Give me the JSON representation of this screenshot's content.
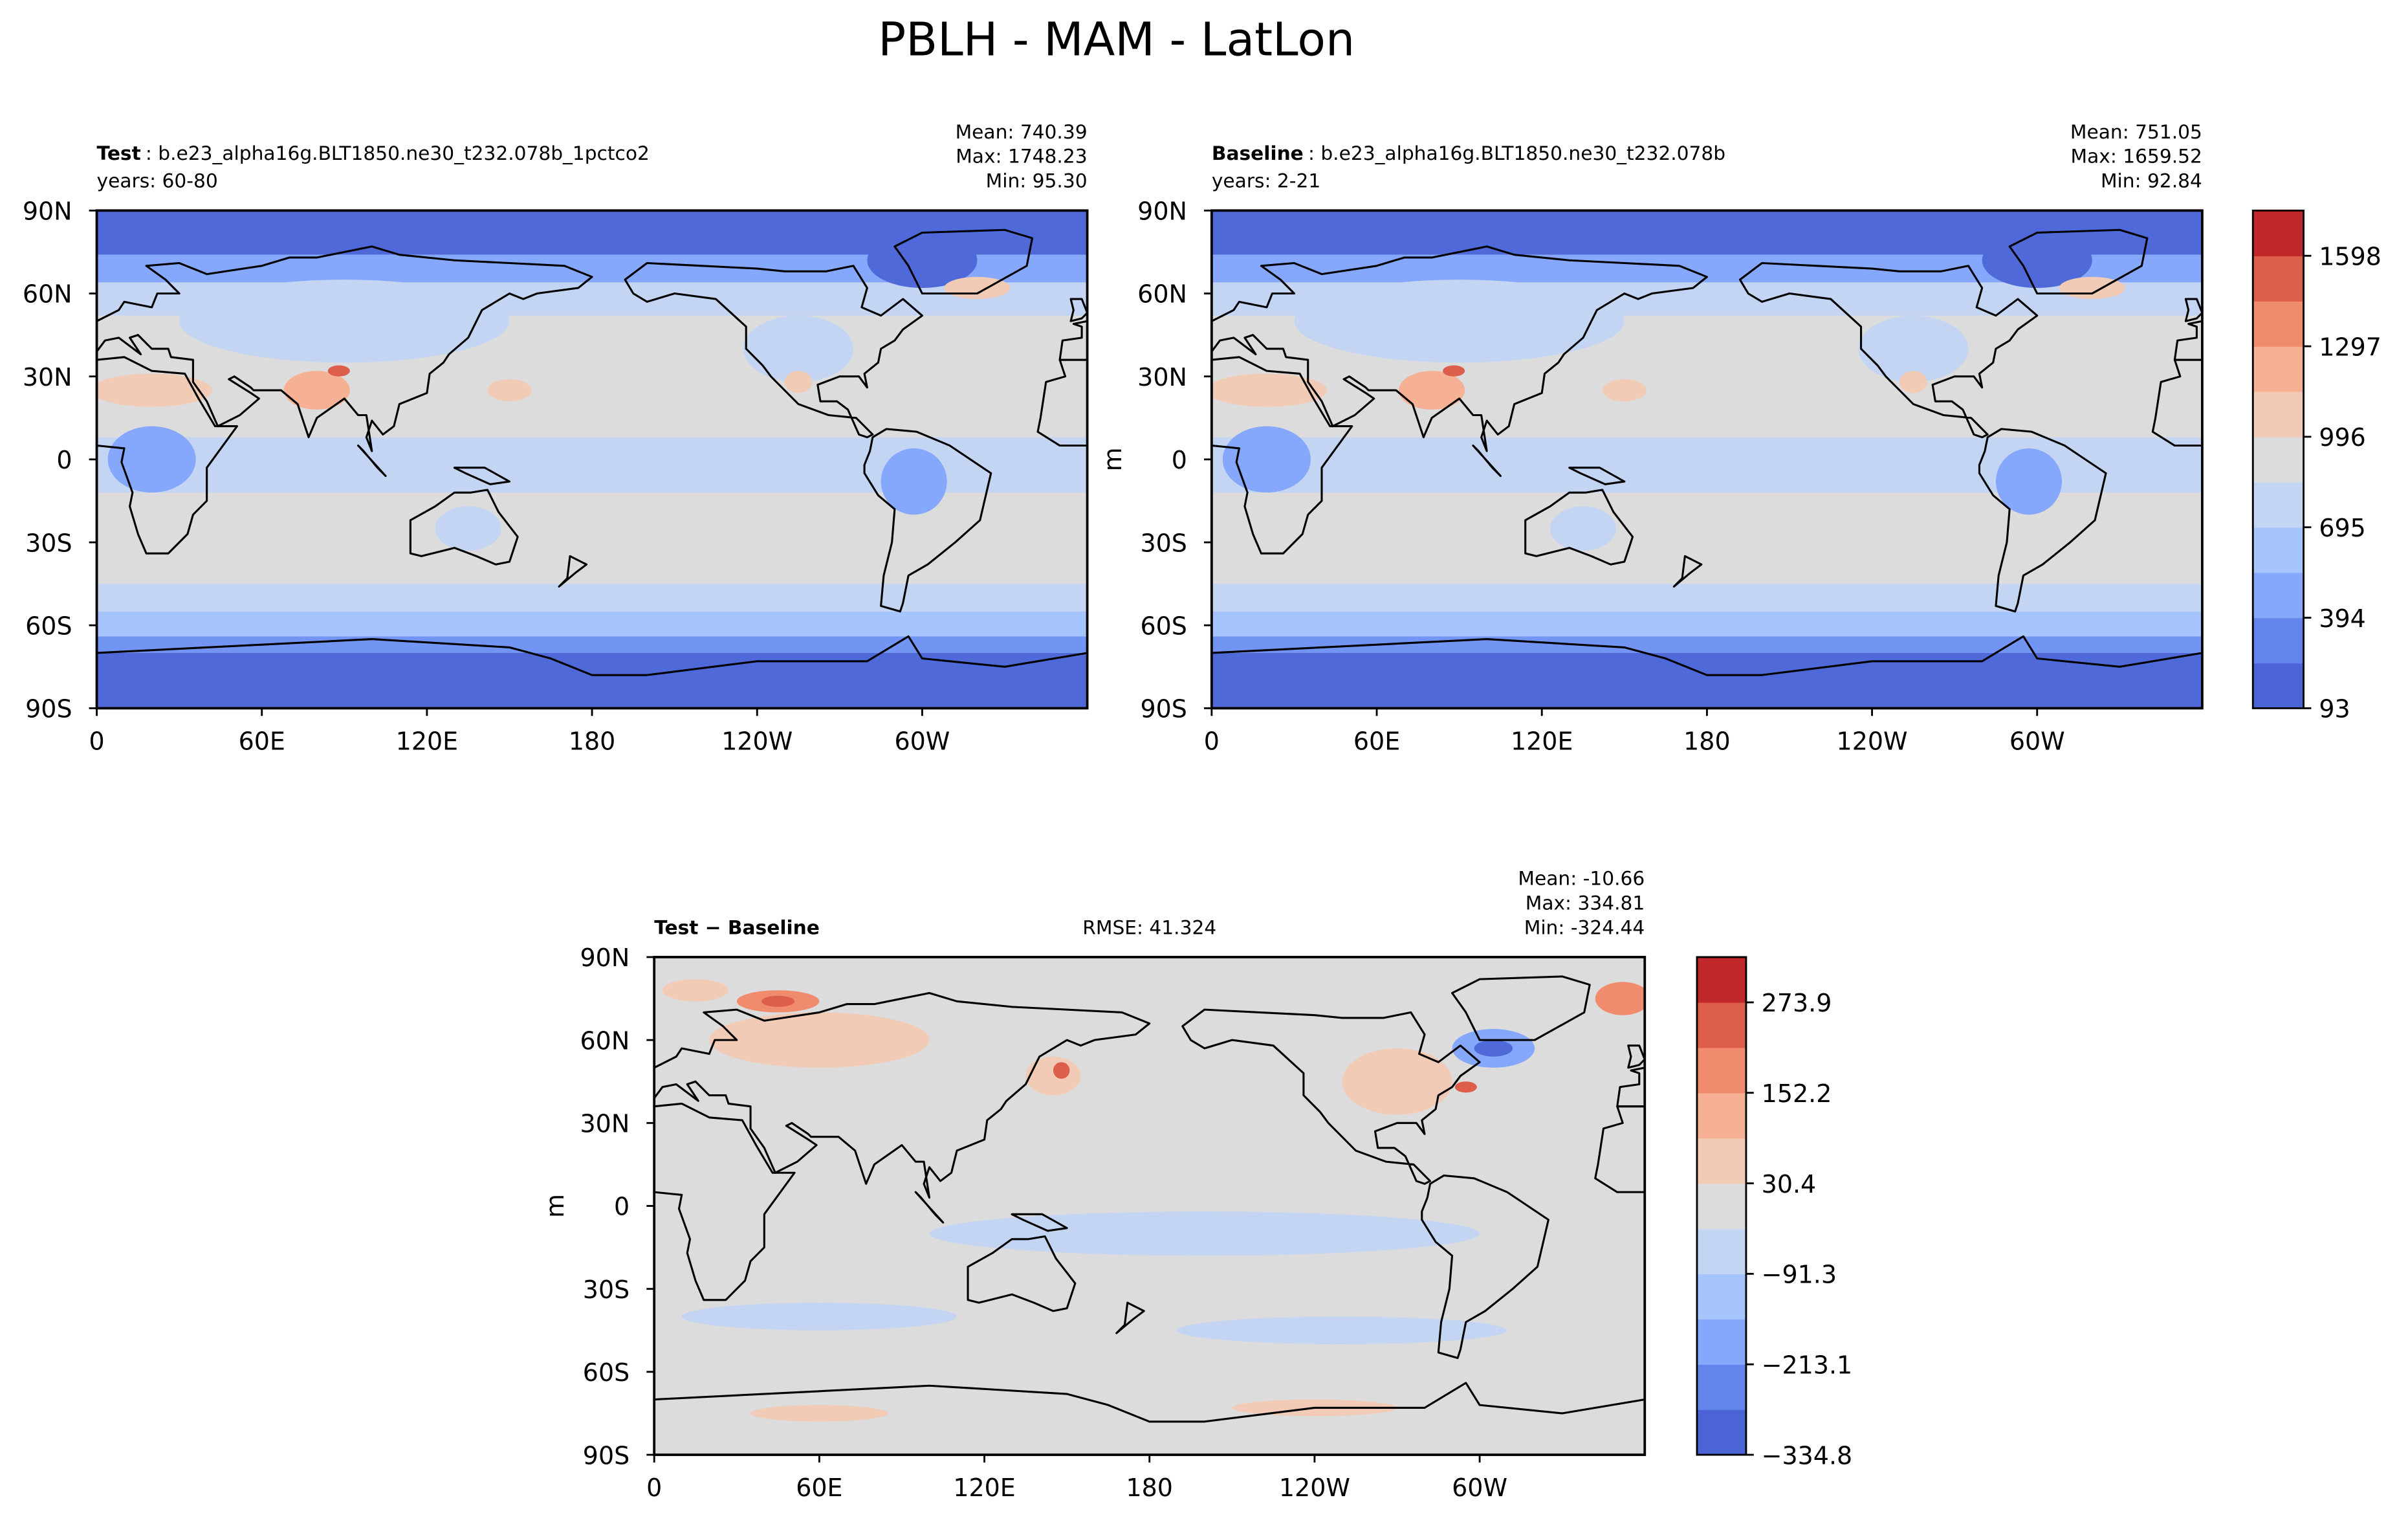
{
  "title": "PBLH - MAM - LatLon",
  "chart_data": [
    {
      "type": "map",
      "name": "Test",
      "case": ": b.e23_alpha16g.BLT1850.ne30_t232.078b_1pctco2",
      "years": "years: 60-80",
      "stats": [
        "Mean: 740.39",
        "Max: 1748.23",
        "Min: 95.30"
      ],
      "pattern": "abs",
      "xlim": [
        0,
        360
      ],
      "ylim": [
        -90,
        90
      ],
      "xticks": [
        0,
        {
          "value": 60,
          "label": "60E"
        },
        {
          "value": 120,
          "label": "120E"
        },
        180,
        {
          "value": 240,
          "label": "120W"
        },
        {
          "value": 300,
          "label": "60W"
        }
      ],
      "yticks": [
        {
          "value": 90,
          "label": "90N"
        },
        {
          "value": 60,
          "label": "60N"
        },
        {
          "value": 30,
          "label": "30N"
        },
        0,
        {
          "value": -30,
          "label": "30S"
        },
        {
          "value": -60,
          "label": "60S"
        },
        {
          "value": -90,
          "label": "90S"
        }
      ]
    },
    {
      "type": "map",
      "name": "Baseline",
      "case": ": b.e23_alpha16g.BLT1850.ne30_t232.078b",
      "years": "years: 2-21",
      "stats": [
        "Mean: 751.05",
        "Max: 1659.52",
        "Min: 92.84"
      ],
      "pattern": "abs",
      "ylabel": "m",
      "xlim": [
        0,
        360
      ],
      "ylim": [
        -90,
        90
      ],
      "xticks": [
        0,
        {
          "value": 60,
          "label": "60E"
        },
        {
          "value": 120,
          "label": "120E"
        },
        180,
        {
          "value": 240,
          "label": "120W"
        },
        {
          "value": 300,
          "label": "60W"
        }
      ],
      "yticks": [
        {
          "value": 90,
          "label": "90N"
        },
        {
          "value": 60,
          "label": "60N"
        },
        {
          "value": 30,
          "label": "30N"
        },
        0,
        {
          "value": -30,
          "label": "30S"
        },
        {
          "value": -60,
          "label": "60S"
        },
        {
          "value": -90,
          "label": "90S"
        }
      ],
      "colorbar": {
        "lim": [
          93,
          1748.5
        ],
        "ticks": [
          93,
          394,
          695,
          996,
          1297,
          1598
        ],
        "colors": [
          "#4b64d5",
          "#6384eb",
          "#85a8fc",
          "#a6c4fe",
          "#c4d5f3",
          "#dddcdc",
          "#f2cbb7",
          "#f6b094",
          "#f08b6d",
          "#dc5e4b",
          "#c0282b"
        ]
      }
    },
    {
      "type": "map",
      "name": "Test − Baseline",
      "rmse": "RMSE: 41.324",
      "stats": [
        "Mean: -10.66",
        "Max: 334.81",
        "Min: -324.44"
      ],
      "pattern": "diff",
      "ylabel": "m",
      "xlim": [
        0,
        360
      ],
      "ylim": [
        -90,
        90
      ],
      "xticks": [
        0,
        {
          "value": 60,
          "label": "60E"
        },
        {
          "value": 120,
          "label": "120E"
        },
        180,
        {
          "value": 240,
          "label": "120W"
        },
        {
          "value": 300,
          "label": "60W"
        }
      ],
      "yticks": [
        {
          "value": 90,
          "label": "90N"
        },
        {
          "value": 60,
          "label": "60N"
        },
        {
          "value": 30,
          "label": "30N"
        },
        0,
        {
          "value": -30,
          "label": "30S"
        },
        {
          "value": -60,
          "label": "60S"
        },
        {
          "value": -90,
          "label": "90S"
        }
      ],
      "colorbar": {
        "lim": [
          -334.8,
          334.8
        ],
        "ticks": [
          {
            "value": -334.8,
            "label": "−334.8"
          },
          {
            "value": -213.1,
            "label": "−213.1"
          },
          {
            "value": -91.3,
            "label": "−91.3"
          },
          30.4,
          152.2,
          273.9
        ],
        "colors": [
          "#4b64d5",
          "#6384eb",
          "#85a8fc",
          "#a6c4fe",
          "#c4d5f3",
          "#dddcdc",
          "#f2cbb7",
          "#f6b094",
          "#f08b6d",
          "#dc5e4b",
          "#c0282b"
        ]
      }
    }
  ]
}
